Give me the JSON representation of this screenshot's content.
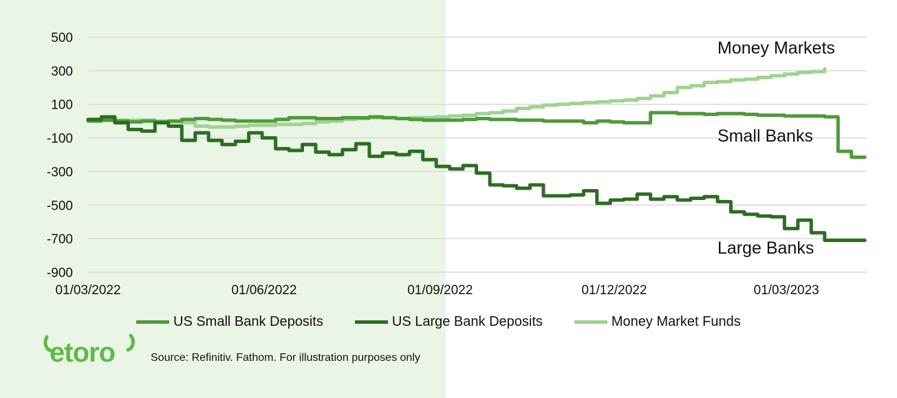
{
  "brand": {
    "logo_text": "eToro",
    "logo_color": "#5fbb46"
  },
  "source_note": "Source: Refinitiv. Fathom. For illustration purposes only",
  "colors": {
    "shade": "#eaf5e6",
    "grid": "#d9d9d9"
  },
  "chart_data": {
    "type": "line",
    "title": "",
    "xlabel": "",
    "ylabel": "",
    "ylim": [
      -900,
      500
    ],
    "xlim": [
      "2022-03-01",
      "2023-04-12"
    ],
    "y_ticks": [
      "500",
      "300",
      "100",
      "-100",
      "-300",
      "-500",
      "-700",
      "-900"
    ],
    "y_tick_values": [
      500,
      300,
      100,
      -100,
      -300,
      -500,
      -700,
      -900
    ],
    "x_ticks": [
      "01/03/2022",
      "01/06/2022",
      "01/09/2022",
      "01/12/2022",
      "01/03/2023"
    ],
    "x_tick_dates": [
      "2022-03-01",
      "2022-06-01",
      "2022-09-01",
      "2022-12-01",
      "2023-03-01"
    ],
    "grid": true,
    "shaded_region": [
      "2022-03-01",
      "2022-09-01"
    ],
    "annotations": {
      "money_markets": "Money Markets",
      "small_banks": "Small Banks",
      "large_banks": "Large Banks"
    },
    "legend_position": "bottom",
    "series": [
      {
        "name": "US Small Bank Deposits",
        "color": "#4f9a3c",
        "x": [
          "2022-03-01",
          "2022-03-08",
          "2022-03-15",
          "2022-03-22",
          "2022-03-29",
          "2022-04-05",
          "2022-04-12",
          "2022-04-19",
          "2022-04-26",
          "2022-05-03",
          "2022-05-10",
          "2022-05-17",
          "2022-05-24",
          "2022-05-31",
          "2022-06-07",
          "2022-06-14",
          "2022-06-21",
          "2022-06-28",
          "2022-07-05",
          "2022-07-12",
          "2022-07-19",
          "2022-07-26",
          "2022-08-02",
          "2022-08-09",
          "2022-08-16",
          "2022-08-23",
          "2022-08-30",
          "2022-09-06",
          "2022-09-13",
          "2022-09-20",
          "2022-09-27",
          "2022-10-04",
          "2022-10-11",
          "2022-10-18",
          "2022-10-25",
          "2022-11-01",
          "2022-11-08",
          "2022-11-15",
          "2022-11-22",
          "2022-11-29",
          "2022-12-06",
          "2022-12-13",
          "2022-12-20",
          "2022-12-27",
          "2023-01-03",
          "2023-01-10",
          "2023-01-17",
          "2023-01-24",
          "2023-01-31",
          "2023-02-07",
          "2023-02-14",
          "2023-02-21",
          "2023-02-28",
          "2023-03-07",
          "2023-03-14",
          "2023-03-21",
          "2023-03-28",
          "2023-04-04",
          "2023-04-11"
        ],
        "values": [
          0,
          5,
          0,
          -5,
          0,
          -5,
          0,
          10,
          15,
          10,
          5,
          0,
          0,
          0,
          10,
          20,
          20,
          15,
          15,
          20,
          20,
          25,
          20,
          15,
          10,
          5,
          5,
          5,
          10,
          15,
          10,
          10,
          5,
          5,
          0,
          0,
          0,
          -10,
          0,
          -5,
          -10,
          -10,
          50,
          50,
          45,
          45,
          40,
          45,
          45,
          40,
          35,
          35,
          30,
          30,
          30,
          25,
          -180,
          -215,
          -215
        ]
      },
      {
        "name": "US Large Bank Deposits",
        "color": "#2d6d22",
        "x": [
          "2022-03-01",
          "2022-03-08",
          "2022-03-15",
          "2022-03-22",
          "2022-03-29",
          "2022-04-05",
          "2022-04-12",
          "2022-04-19",
          "2022-04-26",
          "2022-05-03",
          "2022-05-10",
          "2022-05-17",
          "2022-05-24",
          "2022-05-31",
          "2022-06-07",
          "2022-06-14",
          "2022-06-21",
          "2022-06-28",
          "2022-07-05",
          "2022-07-12",
          "2022-07-19",
          "2022-07-26",
          "2022-08-02",
          "2022-08-09",
          "2022-08-16",
          "2022-08-23",
          "2022-08-30",
          "2022-09-06",
          "2022-09-13",
          "2022-09-20",
          "2022-09-27",
          "2022-10-04",
          "2022-10-11",
          "2022-10-18",
          "2022-10-25",
          "2022-11-01",
          "2022-11-08",
          "2022-11-15",
          "2022-11-22",
          "2022-11-29",
          "2022-12-06",
          "2022-12-13",
          "2022-12-20",
          "2022-12-27",
          "2023-01-03",
          "2023-01-10",
          "2023-01-17",
          "2023-01-24",
          "2023-01-31",
          "2023-02-07",
          "2023-02-14",
          "2023-02-21",
          "2023-02-28",
          "2023-03-07",
          "2023-03-14",
          "2023-03-21",
          "2023-03-28",
          "2023-04-04",
          "2023-04-11"
        ],
        "values": [
          10,
          25,
          -10,
          -50,
          -60,
          -10,
          -30,
          -115,
          -70,
          -115,
          -140,
          -120,
          -70,
          -100,
          -165,
          -175,
          -140,
          -185,
          -200,
          -170,
          -135,
          -210,
          -190,
          -200,
          -180,
          -230,
          -270,
          -285,
          -265,
          -310,
          -380,
          -385,
          -400,
          -380,
          -445,
          -445,
          -440,
          -415,
          -490,
          -470,
          -465,
          -435,
          -465,
          -450,
          -470,
          -460,
          -450,
          -480,
          -540,
          -555,
          -565,
          -570,
          -640,
          -590,
          -665,
          -710,
          -710,
          -710,
          -710
        ]
      },
      {
        "name": "Money Market Funds",
        "color": "#9fd38f",
        "x": [
          "2022-03-01",
          "2022-03-08",
          "2022-03-15",
          "2022-03-22",
          "2022-03-29",
          "2022-04-05",
          "2022-04-12",
          "2022-04-19",
          "2022-04-26",
          "2022-05-03",
          "2022-05-10",
          "2022-05-17",
          "2022-05-24",
          "2022-05-31",
          "2022-06-07",
          "2022-06-14",
          "2022-06-21",
          "2022-06-28",
          "2022-07-05",
          "2022-07-12",
          "2022-07-19",
          "2022-07-26",
          "2022-08-02",
          "2022-08-09",
          "2022-08-16",
          "2022-08-23",
          "2022-08-30",
          "2022-09-06",
          "2022-09-13",
          "2022-09-20",
          "2022-09-27",
          "2022-10-04",
          "2022-10-11",
          "2022-10-18",
          "2022-10-25",
          "2022-11-01",
          "2022-11-08",
          "2022-11-15",
          "2022-11-22",
          "2022-11-29",
          "2022-12-06",
          "2022-12-13",
          "2022-12-20",
          "2022-12-27",
          "2023-01-03",
          "2023-01-10",
          "2023-01-17",
          "2023-01-24",
          "2023-01-31",
          "2023-02-07",
          "2023-02-14",
          "2023-02-21",
          "2023-02-28",
          "2023-03-07",
          "2023-03-14",
          "2023-03-21"
        ],
        "values": [
          5,
          5,
          5,
          5,
          5,
          0,
          -5,
          -10,
          -30,
          -35,
          -35,
          -30,
          -25,
          -25,
          -20,
          -20,
          -15,
          -5,
          0,
          10,
          15,
          20,
          20,
          15,
          20,
          20,
          25,
          30,
          35,
          45,
          50,
          60,
          75,
          85,
          95,
          100,
          105,
          110,
          115,
          120,
          125,
          135,
          150,
          170,
          200,
          210,
          230,
          235,
          245,
          250,
          260,
          270,
          280,
          290,
          295,
          310
        ]
      }
    ]
  }
}
